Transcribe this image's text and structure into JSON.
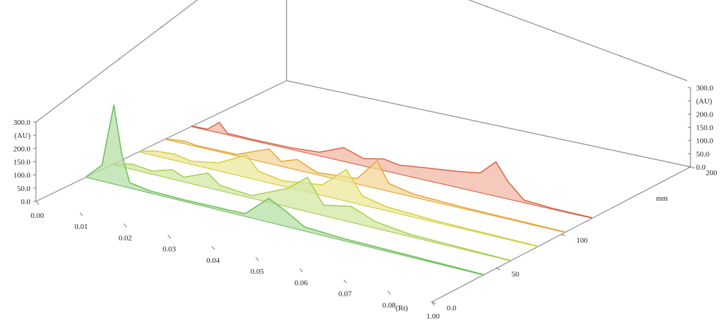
{
  "chart_data": {
    "type": "area",
    "view": "3d-stacked-chromatograms",
    "x_axis": {
      "label": "(Rt)",
      "ticks": [
        "0.00",
        "0.01",
        "0.02",
        "0.03",
        "0.04",
        "0.05",
        "0.06",
        "0.07",
        "0.08",
        "1.00"
      ],
      "range": [
        0,
        1
      ]
    },
    "y_axis": {
      "label": "(AU)",
      "ticks": [
        "0.0",
        "50.0",
        "100.0",
        "150.0",
        "200.0",
        "300.0"
      ],
      "range": [
        0,
        300
      ]
    },
    "z_axis": {
      "label": "mm",
      "ticks": [
        "0.0",
        "50",
        "100",
        "200"
      ],
      "range": [
        0,
        200
      ]
    },
    "series": [
      {
        "color": "#d9684a",
        "fill": "#f2b8a6",
        "points": [
          [
            0.0,
            2
          ],
          [
            0.04,
            4
          ],
          [
            0.07,
            40
          ],
          [
            0.09,
            6
          ],
          [
            0.15,
            4
          ],
          [
            0.25,
            6
          ],
          [
            0.32,
            14
          ],
          [
            0.38,
            52
          ],
          [
            0.43,
            28
          ],
          [
            0.48,
            44
          ],
          [
            0.52,
            34
          ],
          [
            0.58,
            46
          ],
          [
            0.66,
            60
          ],
          [
            0.72,
            74
          ],
          [
            0.76,
            130
          ],
          [
            0.79,
            66
          ],
          [
            0.83,
            10
          ],
          [
            0.9,
            3
          ],
          [
            1.0,
            2
          ]
        ]
      },
      {
        "color": "#e7a83a",
        "fill": "#f4d79a",
        "points": [
          [
            0.0,
            2
          ],
          [
            0.05,
            10
          ],
          [
            0.08,
            4
          ],
          [
            0.18,
            6
          ],
          [
            0.26,
            55
          ],
          [
            0.29,
            18
          ],
          [
            0.33,
            40
          ],
          [
            0.38,
            8
          ],
          [
            0.48,
            20
          ],
          [
            0.53,
            105
          ],
          [
            0.56,
            30
          ],
          [
            0.62,
            12
          ],
          [
            0.75,
            5
          ],
          [
            1.0,
            2
          ]
        ]
      },
      {
        "color": "#d6cf45",
        "fill": "#ece79a",
        "points": [
          [
            0.0,
            2
          ],
          [
            0.04,
            18
          ],
          [
            0.09,
            24
          ],
          [
            0.13,
            12
          ],
          [
            0.2,
            30
          ],
          [
            0.27,
            85
          ],
          [
            0.3,
            35
          ],
          [
            0.36,
            20
          ],
          [
            0.46,
            40
          ],
          [
            0.52,
            120
          ],
          [
            0.56,
            35
          ],
          [
            0.62,
            15
          ],
          [
            0.75,
            6
          ],
          [
            1.0,
            2
          ]
        ]
      },
      {
        "color": "#a9cf55",
        "fill": "#d2e8a4",
        "points": [
          [
            0.0,
            2
          ],
          [
            0.05,
            20
          ],
          [
            0.1,
            12
          ],
          [
            0.15,
            35
          ],
          [
            0.18,
            18
          ],
          [
            0.24,
            55
          ],
          [
            0.27,
            20
          ],
          [
            0.35,
            10
          ],
          [
            0.44,
            70
          ],
          [
            0.49,
            130
          ],
          [
            0.53,
            40
          ],
          [
            0.6,
            60
          ],
          [
            0.66,
            25
          ],
          [
            0.75,
            8
          ],
          [
            1.0,
            2
          ]
        ]
      },
      {
        "color": "#6fbf5a",
        "fill": "#b7dfa6",
        "points": [
          [
            0.0,
            2
          ],
          [
            0.04,
            60
          ],
          [
            0.07,
            300
          ],
          [
            0.09,
            120
          ],
          [
            0.11,
            20
          ],
          [
            0.16,
            8
          ],
          [
            0.25,
            6
          ],
          [
            0.4,
            10
          ],
          [
            0.46,
            90
          ],
          [
            0.5,
            60
          ],
          [
            0.55,
            15
          ],
          [
            0.65,
            8
          ],
          [
            1.0,
            2
          ]
        ]
      }
    ]
  }
}
